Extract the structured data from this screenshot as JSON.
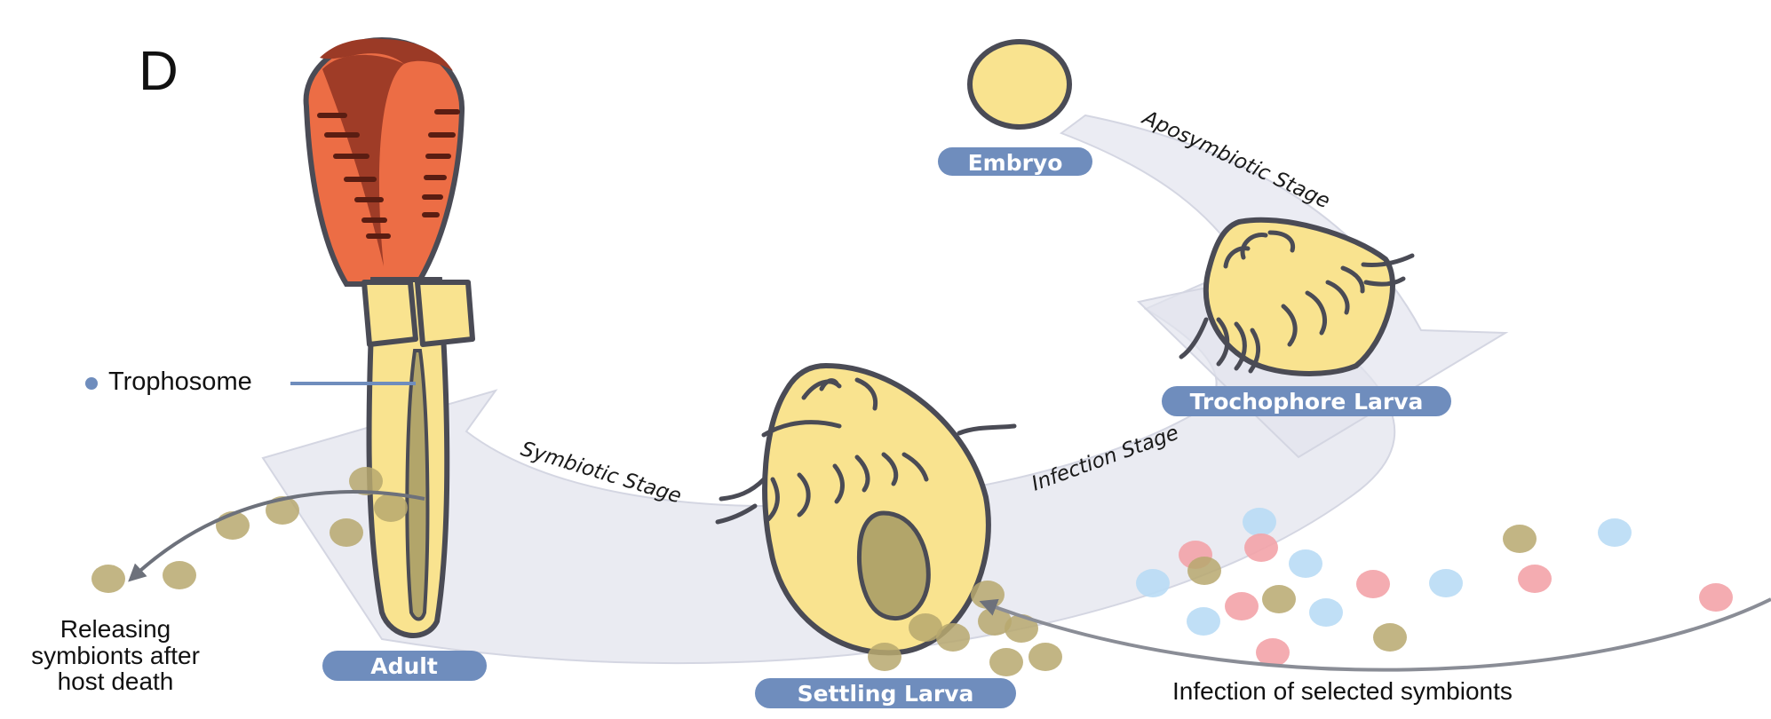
{
  "panel_letter": "D",
  "stages": {
    "embryo": "Embryo",
    "trochophore": "Trochophore Larva",
    "settling": "Settling Larva",
    "adult": "Adult"
  },
  "phases": {
    "aposymbiotic": "Aposymbiotic Stage",
    "infection": "Infection Stage",
    "symbiotic": "Symbiotic Stage"
  },
  "labels": {
    "trophosome": "Trophosome",
    "release_line1": "Releasing",
    "release_line2": "symbionts after",
    "release_line3": "host death",
    "infection": "Infection of selected symbionts"
  },
  "colors": {
    "pill": "#6f8dbd",
    "arrow": "#e3e4ee",
    "larva_fill": "#f9e38f",
    "outline": "#4a4b55",
    "plume_dark": "#9b3a26",
    "plume_orange": "#ec6d45",
    "symbiont_olive": "#b7a86f",
    "symbiont_red": "#f3a3a8",
    "symbiont_blue": "#b9dcf5",
    "trophosome_dot": "#6f8dbd"
  }
}
